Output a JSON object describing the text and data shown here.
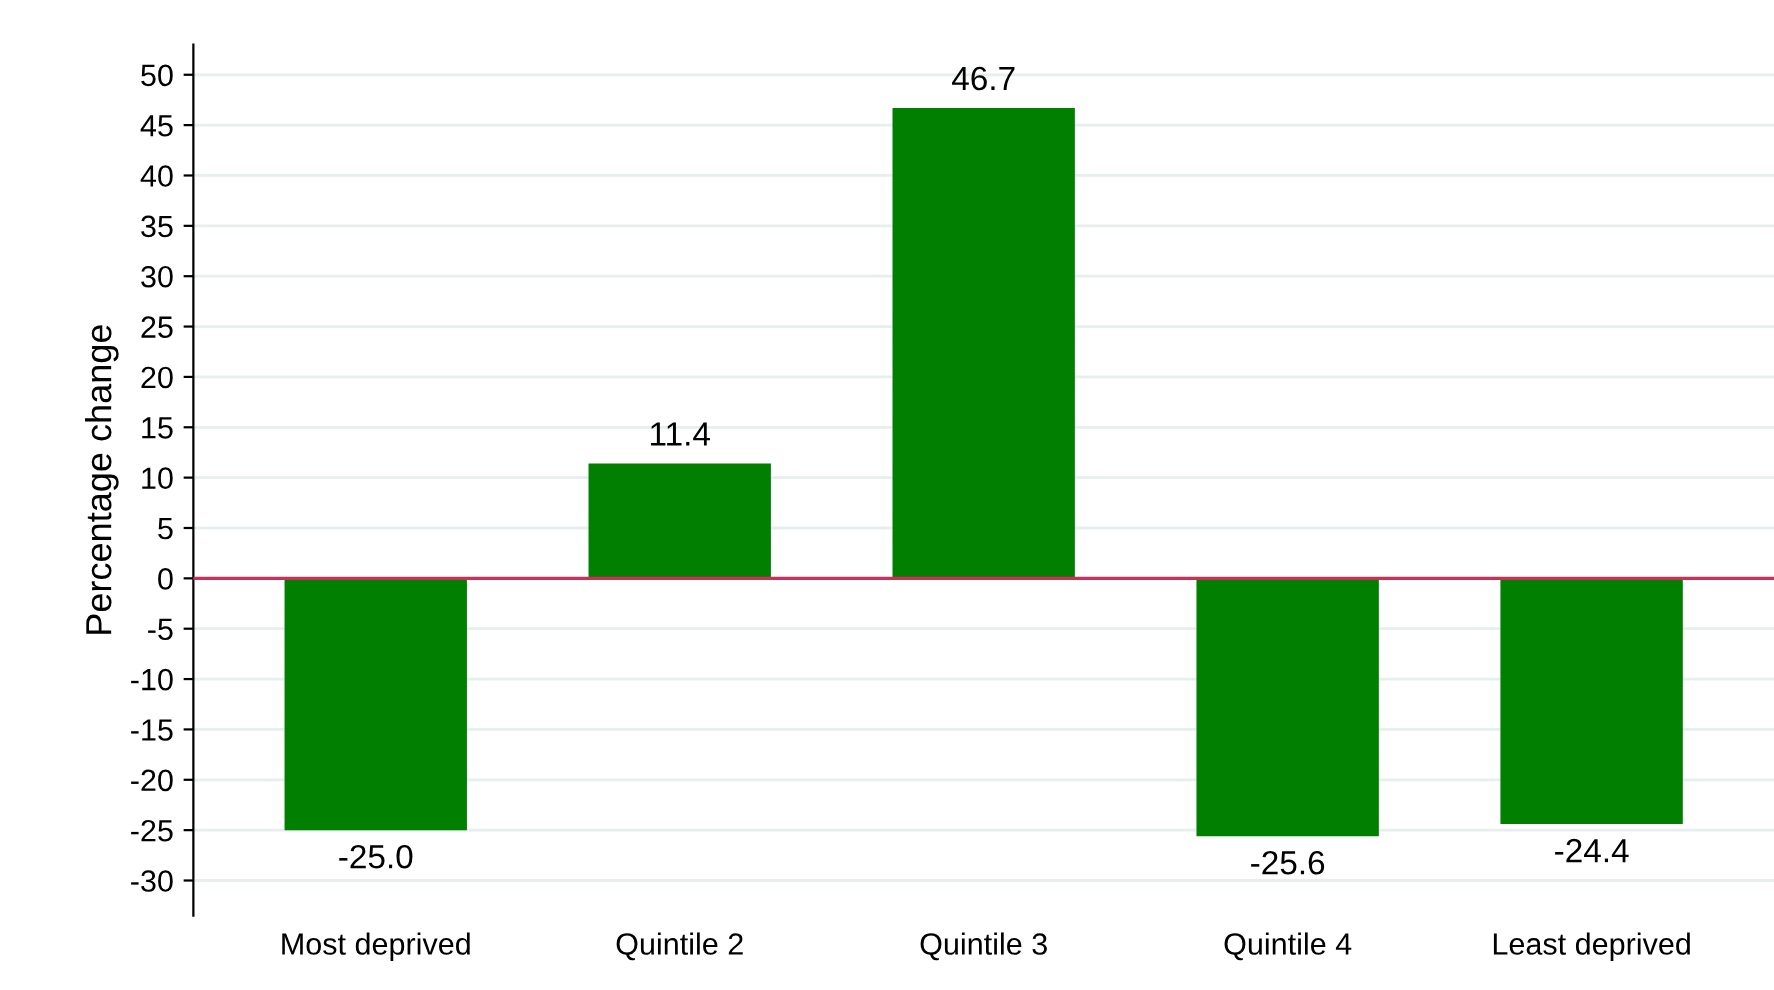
{
  "chart_data": {
    "type": "bar",
    "ylabel": "Percentage change",
    "categories": [
      "Most deprived",
      "Quintile 2",
      "Quintile 3",
      "Quintile 4",
      "Least deprived"
    ],
    "values": [
      -25.0,
      11.4,
      46.7,
      -25.6,
      -24.4
    ],
    "value_labels": [
      "-25.0",
      "11.4",
      "46.7",
      "-25.6",
      "-24.4"
    ],
    "color": "#007f00",
    "ylim": [
      -33.5,
      53
    ],
    "yticks": [
      {
        "value": 50,
        "label": "50"
      },
      {
        "value": 45,
        "label": "45"
      },
      {
        "value": 40,
        "label": "40"
      },
      {
        "value": 35,
        "label": "35"
      },
      {
        "value": 30,
        "label": "30"
      },
      {
        "value": 25,
        "label": "25"
      },
      {
        "value": 20,
        "label": "20"
      },
      {
        "value": 15,
        "label": "15"
      },
      {
        "value": 10,
        "label": "10"
      },
      {
        "value": 5,
        "label": "5"
      },
      {
        "value": 0,
        "label": "0"
      },
      {
        "value": -5,
        "label": "-5"
      },
      {
        "value": -10,
        "label": "-10"
      },
      {
        "value": -15,
        "label": "-15"
      },
      {
        "value": -20,
        "label": "-20"
      },
      {
        "value": -25,
        "label": "-25"
      },
      {
        "value": -30,
        "label": "-30"
      }
    ],
    "grid": "y",
    "ref_lines": [
      {
        "axis": "y",
        "value": 0,
        "color": "#c8325a"
      }
    ]
  }
}
